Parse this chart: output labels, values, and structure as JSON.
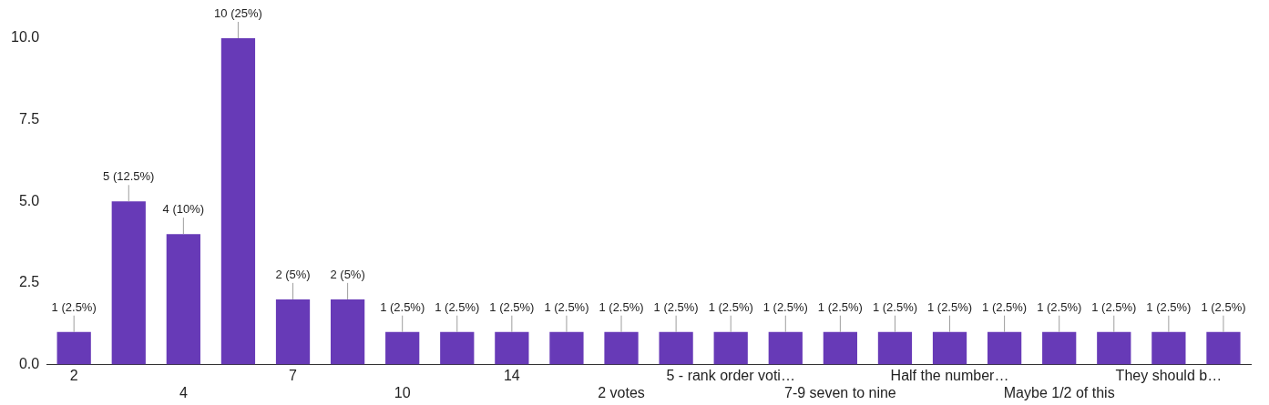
{
  "chart_data": {
    "type": "bar",
    "categories": [
      "2",
      null,
      "4",
      null,
      "7",
      null,
      "10",
      null,
      "14",
      null,
      "2 votes",
      null,
      "5 - rank order voti…",
      null,
      "7-9 seven to nine",
      null,
      "Half the number…",
      null,
      "Maybe 1/2 of this",
      null,
      "They should b…",
      null
    ],
    "values": [
      1,
      5,
      4,
      10,
      2,
      2,
      1,
      1,
      1,
      1,
      1,
      1,
      1,
      1,
      1,
      1,
      1,
      1,
      1,
      1,
      1,
      1
    ],
    "color": "#673ab7",
    "value_labels": [
      "1 (2.5%)",
      "5 (12.5%)",
      "4 (10%)",
      "10 (25%)",
      "2 (5%)",
      "2 (5%)",
      "1 (2.5%)",
      "1 (2.5%)",
      "1 (2.5%)",
      "1 (2.5%)",
      "1 (2.5%)",
      "1 (2.5%)",
      "1 (2.5%)",
      "1 (2.5%)",
      "1 (2.5%)",
      "1 (2.5%)",
      "1 (2.5%)",
      "1 (2.5%)",
      "1 (2.5%)",
      "1 (2.5%)",
      "1 (2.5%)",
      "1 (2.5%)"
    ],
    "ylim": [
      0,
      10
    ],
    "yticks": [
      {
        "value": 0,
        "label": "0.0"
      },
      {
        "value": 2.5,
        "label": "2.5"
      },
      {
        "value": 5,
        "label": "5.0"
      },
      {
        "value": 7.5,
        "label": "7.5"
      },
      {
        "value": 10,
        "label": "10.0"
      }
    ],
    "grid": false,
    "legend": false
  }
}
